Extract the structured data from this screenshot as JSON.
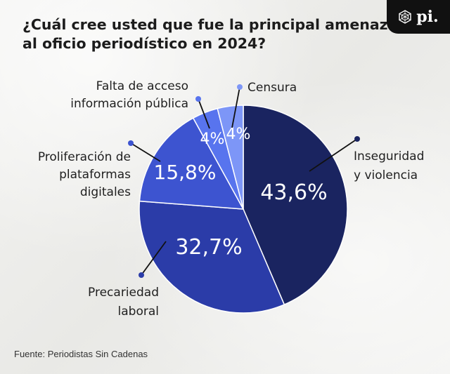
{
  "title": {
    "line1": "¿Cuál cree usted que fue la principal amenaza",
    "line2": "al oficio periodístico en 2024?"
  },
  "logo": {
    "text": "pi.",
    "icon": "hexagon-logo-icon"
  },
  "source": "Fuente: Periodistas Sin Cadenas",
  "chart_data": {
    "type": "pie",
    "unit": "%",
    "slices": [
      {
        "label": "Inseguridad y violencia",
        "value": 43.6,
        "display": "43,6%",
        "color": "#1a2460"
      },
      {
        "label": "Precariedad laboral",
        "value": 32.7,
        "display": "32,7%",
        "color": "#2b3ca8"
      },
      {
        "label": "Proliferación de plataformas digitales",
        "value": 15.8,
        "display": "15,8%",
        "color": "#3d54d0"
      },
      {
        "label": "Falta de acceso información pública",
        "value": 4,
        "display": "4%",
        "color": "#5874ee"
      },
      {
        "label": "Censura",
        "value": 4,
        "display": "4%",
        "color": "#7d96f7"
      }
    ]
  }
}
